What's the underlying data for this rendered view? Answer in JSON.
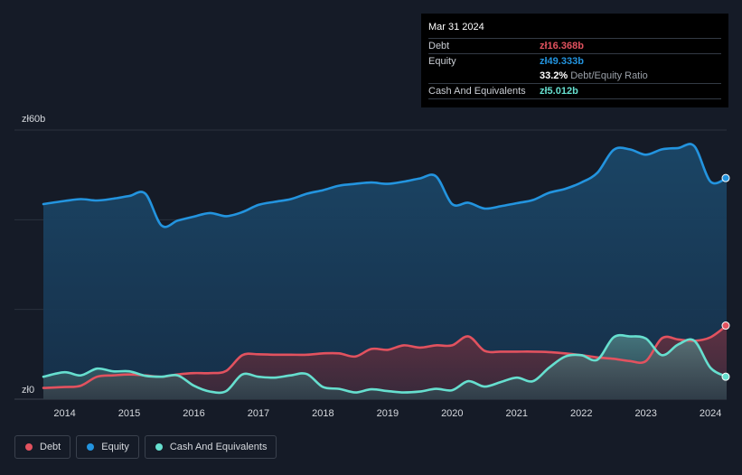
{
  "chart_data": {
    "type": "area",
    "y_axis_labels": [
      "zł60b",
      "zł0"
    ],
    "ylim": [
      0,
      60
    ],
    "xlim": [
      2013.67,
      2024.25
    ],
    "x_ticks": [
      "2014",
      "2015",
      "2016",
      "2017",
      "2018",
      "2019",
      "2020",
      "2021",
      "2022",
      "2023",
      "2024"
    ],
    "grid": true,
    "legend_position": "bottom-left",
    "series": [
      {
        "name": "Debt",
        "color": "#e2525f",
        "x": [
          2013.67,
          2014.0,
          2014.25,
          2014.5,
          2014.75,
          2015.0,
          2015.25,
          2015.5,
          2015.75,
          2016.0,
          2016.25,
          2016.5,
          2016.75,
          2017.0,
          2017.25,
          2017.5,
          2017.75,
          2018.0,
          2018.25,
          2018.5,
          2018.75,
          2019.0,
          2019.25,
          2019.5,
          2019.75,
          2020.0,
          2020.25,
          2020.5,
          2020.75,
          2021.0,
          2021.25,
          2021.5,
          2021.75,
          2022.0,
          2022.25,
          2022.5,
          2022.75,
          2023.0,
          2023.25,
          2023.5,
          2023.75,
          2024.0,
          2024.25
        ],
        "values": [
          2.5,
          2.7,
          3.0,
          5.0,
          5.3,
          5.5,
          5.3,
          5.0,
          5.5,
          5.8,
          5.8,
          6.3,
          9.8,
          10.0,
          9.9,
          9.9,
          9.9,
          10.2,
          10.2,
          9.5,
          11.2,
          11.0,
          12.0,
          11.5,
          12.0,
          12.0,
          14.0,
          10.8,
          10.6,
          10.6,
          10.6,
          10.5,
          10.2,
          9.8,
          9.3,
          9.0,
          8.5,
          8.5,
          13.6,
          13.3,
          13.0,
          13.8,
          16.4
        ]
      },
      {
        "name": "Equity",
        "color": "#2394df",
        "x": [
          2013.67,
          2014.0,
          2014.25,
          2014.5,
          2014.75,
          2015.0,
          2015.25,
          2015.5,
          2015.75,
          2016.0,
          2016.25,
          2016.5,
          2016.75,
          2017.0,
          2017.25,
          2017.5,
          2017.75,
          2018.0,
          2018.25,
          2018.5,
          2018.75,
          2019.0,
          2019.25,
          2019.5,
          2019.75,
          2020.0,
          2020.25,
          2020.5,
          2020.75,
          2021.0,
          2021.25,
          2021.5,
          2021.75,
          2022.0,
          2022.25,
          2022.5,
          2022.75,
          2023.0,
          2023.25,
          2023.5,
          2023.75,
          2024.0,
          2024.25
        ],
        "values": [
          43.5,
          44.2,
          44.6,
          44.3,
          44.7,
          45.3,
          45.8,
          38.7,
          39.8,
          40.7,
          41.5,
          40.8,
          41.7,
          43.3,
          44.0,
          44.6,
          45.8,
          46.6,
          47.6,
          48.0,
          48.3,
          48.0,
          48.5,
          49.2,
          49.7,
          43.5,
          43.8,
          42.5,
          43.0,
          43.7,
          44.4,
          46.0,
          46.9,
          48.3,
          50.5,
          55.6,
          55.7,
          54.5,
          55.7,
          56.0,
          56.4,
          48.5,
          49.3
        ]
      },
      {
        "name": "Cash And Equivalents",
        "color": "#66dfcf",
        "x": [
          2013.67,
          2014.0,
          2014.25,
          2014.5,
          2014.75,
          2015.0,
          2015.25,
          2015.5,
          2015.75,
          2016.0,
          2016.25,
          2016.5,
          2016.75,
          2017.0,
          2017.25,
          2017.5,
          2017.75,
          2018.0,
          2018.25,
          2018.5,
          2018.75,
          2019.0,
          2019.25,
          2019.5,
          2019.75,
          2020.0,
          2020.25,
          2020.5,
          2020.75,
          2021.0,
          2021.25,
          2021.5,
          2021.75,
          2022.0,
          2022.25,
          2022.5,
          2022.75,
          2023.0,
          2023.25,
          2023.5,
          2023.75,
          2024.0,
          2024.25
        ],
        "values": [
          5.0,
          6.0,
          5.3,
          6.8,
          6.2,
          6.2,
          5.2,
          5.0,
          5.3,
          3.0,
          1.7,
          1.8,
          5.5,
          5.0,
          4.8,
          5.3,
          5.6,
          2.7,
          2.3,
          1.5,
          2.2,
          1.8,
          1.5,
          1.7,
          2.3,
          2.0,
          4.0,
          2.8,
          3.8,
          4.8,
          4.0,
          7.0,
          9.5,
          9.8,
          8.8,
          13.8,
          14.0,
          13.5,
          9.8,
          12.2,
          13.0,
          7.0,
          5.0
        ]
      }
    ]
  },
  "tooltip": {
    "date": "Mar 31 2024",
    "rows": [
      {
        "label": "Debt",
        "value": "zł16.368b",
        "color": "#e2525f"
      },
      {
        "label": "Equity",
        "value": "zł49.333b",
        "color": "#2394df"
      },
      {
        "label": "",
        "value": "33.2%",
        "sub": "Debt/Equity Ratio",
        "color": "#ffffff"
      },
      {
        "label": "Cash And Equivalents",
        "value": "zł5.012b",
        "color": "#66dfcf"
      }
    ]
  },
  "legend": [
    {
      "label": "Debt",
      "color": "#e2525f"
    },
    {
      "label": "Equity",
      "color": "#2394df"
    },
    {
      "label": "Cash And Equivalents",
      "color": "#66dfcf"
    }
  ]
}
